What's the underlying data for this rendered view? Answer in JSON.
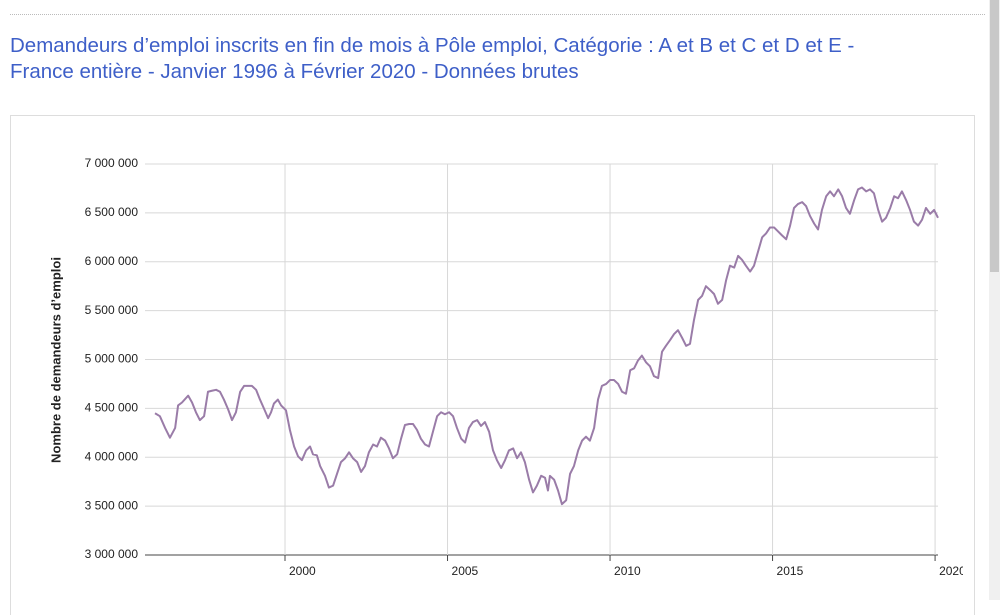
{
  "chart_data": {
    "type": "line",
    "title_lines": [
      "Demandeurs d’emploi inscrits en fin de mois à Pôle emploi, Catégorie : A et B et C et D et E -",
      "France entière - Janvier 1996 à Février 2020 - Données brutes"
    ],
    "y_label": "Nombre de demandeurs d’emploi",
    "color": "#9a7ca8",
    "grid": true,
    "xlim": [
      1996,
      2020.09
    ],
    "xticks": [
      2000,
      2005,
      2010,
      2015,
      2020
    ],
    "ylim": [
      3000000,
      7000000
    ],
    "yticks": [
      {
        "value": 3000000,
        "label": "3 000 000"
      },
      {
        "value": 3500000,
        "label": "3 500 000"
      },
      {
        "value": 4000000,
        "label": "4 000 000"
      },
      {
        "value": 4500000,
        "label": "4 500 000"
      },
      {
        "value": 5000000,
        "label": "5 000 000"
      },
      {
        "value": 5500000,
        "label": "5 500 000"
      },
      {
        "value": 6000000,
        "label": "6 000 000"
      },
      {
        "value": 6500000,
        "label": "6 500 000"
      },
      {
        "value": 7000000,
        "label": "7 000 000"
      }
    ],
    "x": [
      1996.0,
      1996.15,
      1996.31,
      1996.46,
      1996.62,
      1996.71,
      1996.83,
      1997.02,
      1997.14,
      1997.26,
      1997.38,
      1997.51,
      1997.63,
      1997.75,
      1997.88,
      1998.0,
      1998.12,
      1998.25,
      1998.37,
      1998.49,
      1998.62,
      1998.74,
      1998.98,
      1999.11,
      1999.23,
      1999.35,
      1999.48,
      1999.57,
      1999.66,
      1999.78,
      1999.88,
      2000.03,
      2000.15,
      2000.28,
      2000.4,
      2000.52,
      2000.65,
      2000.77,
      2000.86,
      2000.98,
      2001.08,
      2001.23,
      2001.35,
      2001.48,
      2001.6,
      2001.72,
      2001.85,
      2001.97,
      2002.09,
      2002.22,
      2002.34,
      2002.46,
      2002.58,
      2002.71,
      2002.83,
      2002.95,
      2003.08,
      2003.2,
      2003.32,
      2003.45,
      2003.57,
      2003.69,
      2003.82,
      2003.94,
      2004.06,
      2004.18,
      2004.31,
      2004.43,
      2004.55,
      2004.68,
      2004.8,
      2004.92,
      2005.05,
      2005.17,
      2005.29,
      2005.42,
      2005.54,
      2005.66,
      2005.78,
      2005.91,
      2006.03,
      2006.15,
      2006.28,
      2006.4,
      2006.52,
      2006.65,
      2006.77,
      2006.89,
      2007.02,
      2007.14,
      2007.26,
      2007.38,
      2007.51,
      2007.63,
      2007.75,
      2007.88,
      2008.0,
      2008.09,
      2008.15,
      2008.28,
      2008.4,
      2008.52,
      2008.65,
      2008.77,
      2008.89,
      2009.02,
      2009.14,
      2009.26,
      2009.38,
      2009.51,
      2009.63,
      2009.75,
      2009.88,
      2010.0,
      2010.12,
      2010.25,
      2010.37,
      2010.49,
      2010.62,
      2010.74,
      2010.86,
      2010.98,
      2011.11,
      2011.23,
      2011.35,
      2011.48,
      2011.6,
      2011.72,
      2011.85,
      2011.97,
      2012.09,
      2012.22,
      2012.34,
      2012.46,
      2012.58,
      2012.71,
      2012.83,
      2012.95,
      2013.08,
      2013.2,
      2013.32,
      2013.45,
      2013.57,
      2013.69,
      2013.82,
      2013.94,
      2014.06,
      2014.18,
      2014.31,
      2014.43,
      2014.55,
      2014.68,
      2014.8,
      2014.92,
      2015.05,
      2015.17,
      2015.29,
      2015.42,
      2015.54,
      2015.66,
      2015.78,
      2015.91,
      2016.03,
      2016.15,
      2016.28,
      2016.4,
      2016.52,
      2016.65,
      2016.77,
      2016.89,
      2017.02,
      2017.14,
      2017.26,
      2017.38,
      2017.51,
      2017.63,
      2017.75,
      2017.88,
      2018.0,
      2018.12,
      2018.25,
      2018.37,
      2018.49,
      2018.62,
      2018.74,
      2018.86,
      2018.98,
      2019.11,
      2019.23,
      2019.35,
      2019.48,
      2019.6,
      2019.72,
      2019.85,
      2019.97,
      2020.09
    ],
    "values": [
      4450000,
      4420000,
      4300000,
      4200000,
      4300000,
      4530000,
      4560000,
      4630000,
      4560000,
      4460000,
      4380000,
      4420000,
      4670000,
      4680000,
      4690000,
      4670000,
      4590000,
      4490000,
      4380000,
      4460000,
      4670000,
      4730000,
      4730000,
      4690000,
      4590000,
      4500000,
      4400000,
      4460000,
      4550000,
      4590000,
      4530000,
      4480000,
      4280000,
      4110000,
      4010000,
      3970000,
      4070000,
      4110000,
      4030000,
      4020000,
      3910000,
      3810000,
      3690000,
      3710000,
      3830000,
      3950000,
      3990000,
      4050000,
      3990000,
      3950000,
      3850000,
      3910000,
      4050000,
      4130000,
      4110000,
      4200000,
      4170000,
      4090000,
      3990000,
      4030000,
      4190000,
      4330000,
      4340000,
      4340000,
      4280000,
      4190000,
      4130000,
      4110000,
      4260000,
      4420000,
      4460000,
      4440000,
      4460000,
      4420000,
      4300000,
      4190000,
      4150000,
      4300000,
      4360000,
      4380000,
      4320000,
      4360000,
      4260000,
      4070000,
      3970000,
      3890000,
      3970000,
      4070000,
      4090000,
      3990000,
      4050000,
      3950000,
      3770000,
      3640000,
      3710000,
      3810000,
      3790000,
      3660000,
      3810000,
      3770000,
      3660000,
      3520000,
      3560000,
      3830000,
      3910000,
      4070000,
      4170000,
      4210000,
      4170000,
      4300000,
      4590000,
      4730000,
      4750000,
      4790000,
      4790000,
      4750000,
      4670000,
      4650000,
      4890000,
      4910000,
      4990000,
      5040000,
      4970000,
      4930000,
      4830000,
      4810000,
      5080000,
      5140000,
      5200000,
      5260000,
      5300000,
      5220000,
      5140000,
      5160000,
      5400000,
      5610000,
      5650000,
      5750000,
      5710000,
      5670000,
      5570000,
      5610000,
      5810000,
      5960000,
      5940000,
      6060000,
      6020000,
      5960000,
      5900000,
      5960000,
      6100000,
      6250000,
      6290000,
      6350000,
      6350000,
      6310000,
      6270000,
      6230000,
      6370000,
      6550000,
      6590000,
      6610000,
      6570000,
      6470000,
      6390000,
      6330000,
      6530000,
      6670000,
      6720000,
      6670000,
      6740000,
      6670000,
      6550000,
      6490000,
      6630000,
      6740000,
      6760000,
      6720000,
      6740000,
      6700000,
      6530000,
      6410000,
      6450000,
      6550000,
      6670000,
      6650000,
      6720000,
      6630000,
      6530000,
      6410000,
      6370000,
      6430000,
      6550000,
      6490000,
      6530000,
      6450000
    ]
  }
}
